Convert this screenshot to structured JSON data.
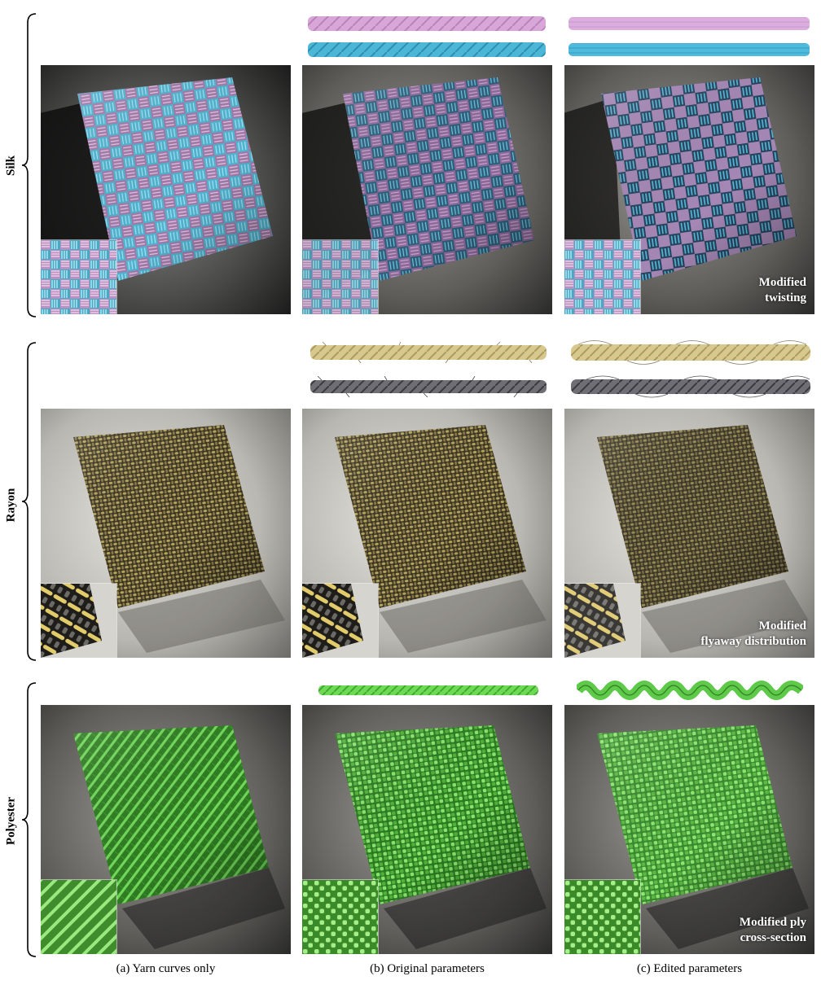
{
  "rows": [
    {
      "label": "Silk"
    },
    {
      "label": "Rayon"
    },
    {
      "label": "Polyester"
    }
  ],
  "modifications": [
    "Modified\ntwisting",
    "Modified\nflyaway distribution",
    "Modified ply\ncross-section"
  ],
  "captions": [
    "(a) Yarn curves only",
    "(b) Original parameters",
    "(c) Edited parameters"
  ],
  "colors": {
    "silk_pink": "#d8a6d8",
    "silk_blue": "#4cb6d6",
    "rayon_gold": "#c9b878",
    "rayon_gray": "#6a6a70",
    "polyester_green": "#5fc94a"
  }
}
